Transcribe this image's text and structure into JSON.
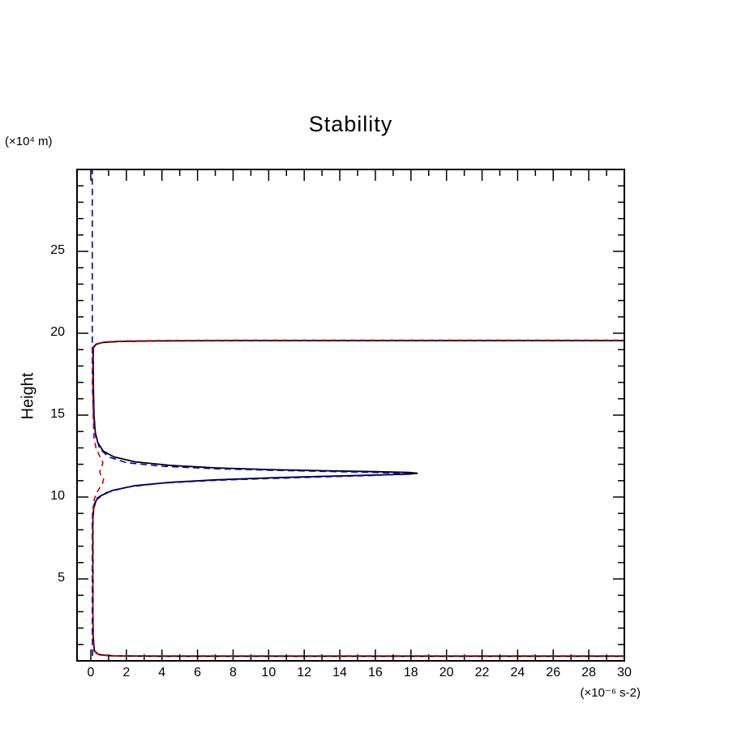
{
  "title": "Stability",
  "y_axis_unit": "(×10⁴ m)",
  "y_axis_label": "Height",
  "x_axis_unit": "(×10⁻⁶ s-2)",
  "chart_data": {
    "type": "line",
    "title": "Stability",
    "xlabel": "(×10⁻⁶ s-2)",
    "ylabel": "Height (×10⁴ m)",
    "xlim": [
      -0.78,
      30
    ],
    "ylim": [
      0,
      30
    ],
    "grid": false,
    "legend": "none",
    "x_tick_values": [
      0,
      2,
      4,
      6,
      8,
      10,
      12,
      14,
      16,
      18,
      20,
      22,
      24,
      26,
      28,
      30
    ],
    "x_tick_labels": [
      "0",
      "2",
      "4",
      "6",
      "8",
      "10",
      "12",
      "14",
      "16",
      "18",
      "20",
      "22",
      "24",
      "26",
      "28",
      "30"
    ],
    "y_tick_values": [
      5,
      10,
      15,
      20,
      25
    ],
    "y_tick_labels": [
      "5",
      "10",
      "15",
      "20",
      "25"
    ],
    "series": [
      {
        "name": "black-solid",
        "color": "#000000",
        "dash": "solid",
        "width": 1.8,
        "points": [
          [
            30,
            0.28
          ],
          [
            20,
            0.28
          ],
          [
            10,
            0.28
          ],
          [
            4,
            0.28
          ],
          [
            1.2,
            0.3
          ],
          [
            0.45,
            0.38
          ],
          [
            0.2,
            0.6
          ],
          [
            0.13,
            1.5
          ],
          [
            0.12,
            3
          ],
          [
            0.12,
            6
          ],
          [
            0.12,
            8.6
          ],
          [
            0.16,
            9.3
          ],
          [
            0.3,
            9.8
          ],
          [
            0.6,
            10.1
          ],
          [
            1.2,
            10.4
          ],
          [
            2.5,
            10.7
          ],
          [
            4.5,
            10.9
          ],
          [
            7,
            11.05
          ],
          [
            10,
            11.17
          ],
          [
            13,
            11.26
          ],
          [
            16,
            11.34
          ],
          [
            17.9,
            11.4
          ],
          [
            18.35,
            11.45
          ],
          [
            17.9,
            11.5
          ],
          [
            16,
            11.55
          ],
          [
            13,
            11.61
          ],
          [
            10,
            11.68
          ],
          [
            7,
            11.78
          ],
          [
            4.5,
            11.93
          ],
          [
            2.5,
            12.15
          ],
          [
            1.3,
            12.45
          ],
          [
            0.7,
            12.8
          ],
          [
            0.4,
            13.3
          ],
          [
            0.25,
            13.95
          ],
          [
            0.18,
            15
          ],
          [
            0.14,
            17
          ],
          [
            0.13,
            18.8
          ],
          [
            0.16,
            19.15
          ],
          [
            0.3,
            19.33
          ],
          [
            0.7,
            19.44
          ],
          [
            1.6,
            19.5
          ],
          [
            3.5,
            19.53
          ],
          [
            8,
            19.55
          ],
          [
            15,
            19.55
          ],
          [
            22,
            19.55
          ],
          [
            30,
            19.55
          ]
        ]
      },
      {
        "name": "blue-dashed",
        "color": "#0000cc",
        "dash": "8 5",
        "width": 1.6,
        "points": [
          [
            0.1,
            0.3
          ],
          [
            0.08,
            2
          ],
          [
            0.08,
            5
          ],
          [
            0.08,
            8.6
          ],
          [
            0.12,
            9.35
          ],
          [
            0.3,
            9.9
          ],
          [
            0.8,
            10.25
          ],
          [
            2,
            10.6
          ],
          [
            4,
            10.85
          ],
          [
            7,
            11.02
          ],
          [
            10,
            11.13
          ],
          [
            13,
            11.23
          ],
          [
            16,
            11.32
          ],
          [
            17.95,
            11.42
          ],
          [
            16,
            11.5
          ],
          [
            13,
            11.57
          ],
          [
            10,
            11.64
          ],
          [
            7,
            11.73
          ],
          [
            4,
            11.88
          ],
          [
            2,
            12.1
          ],
          [
            1,
            12.45
          ],
          [
            0.5,
            12.95
          ],
          [
            0.27,
            13.7
          ],
          [
            0.16,
            14.8
          ],
          [
            0.1,
            16.5
          ],
          [
            0.08,
            18.5
          ],
          [
            0.08,
            21
          ],
          [
            0.08,
            24
          ],
          [
            0.08,
            27
          ],
          [
            0.08,
            30
          ]
        ]
      },
      {
        "name": "red-dashed",
        "color": "#cc0000",
        "dash": "7 5",
        "width": 1.6,
        "points": [
          [
            30,
            0.3
          ],
          [
            24,
            0.3
          ],
          [
            18,
            0.3
          ],
          [
            12,
            0.3
          ],
          [
            6,
            0.3
          ],
          [
            2,
            0.3
          ],
          [
            0.8,
            0.32
          ],
          [
            0.3,
            0.45
          ],
          [
            0.15,
            1
          ],
          [
            0.12,
            3
          ],
          [
            0.12,
            6
          ],
          [
            0.12,
            9
          ],
          [
            0.2,
            9.9
          ],
          [
            0.4,
            10.4
          ],
          [
            0.65,
            10.8
          ],
          [
            0.72,
            11.1
          ],
          [
            0.55,
            11.35
          ],
          [
            0.5,
            11.55
          ],
          [
            0.62,
            11.85
          ],
          [
            0.68,
            12.1
          ],
          [
            0.5,
            12.5
          ],
          [
            0.3,
            12.95
          ],
          [
            0.18,
            13.6
          ],
          [
            0.13,
            15
          ],
          [
            0.11,
            17
          ],
          [
            0.11,
            18.9
          ],
          [
            0.15,
            19.2
          ],
          [
            0.35,
            19.37
          ],
          [
            0.8,
            19.47
          ],
          [
            1.8,
            19.53
          ],
          [
            4,
            19.56
          ],
          [
            9,
            19.58
          ],
          [
            16,
            19.58
          ],
          [
            23,
            19.58
          ],
          [
            30,
            19.58
          ]
        ]
      }
    ]
  }
}
